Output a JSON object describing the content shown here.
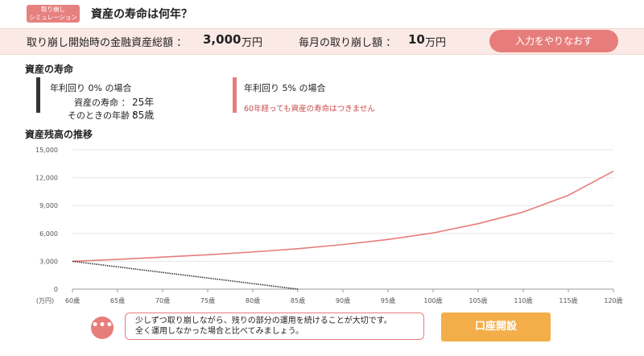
{
  "header": {
    "badge_line1": "取り崩し",
    "badge_line2": "シミュレーション",
    "title": "資産の寿命は何年？"
  },
  "summary": {
    "initial_label": "取り崩し開始時の金融資産総額 ：",
    "initial_value": "3,000",
    "initial_unit": "万円",
    "monthly_label": "毎月の取り崩し額 ：",
    "monthly_value": "10",
    "monthly_unit": "万円",
    "redo_button": "入力をやりなおす"
  },
  "lifespan": {
    "title": "資産の寿命",
    "scenario0": {
      "label": "年利回り 0% の場合",
      "life_label": "資産の寿命 ：",
      "life_value": "25年",
      "age_label": "そのときの年齢 ：",
      "age_value": "85歳"
    },
    "scenario5": {
      "label": "年利回り 5% の場合",
      "note": "60年経っても資産の寿命はつきません"
    }
  },
  "balance": {
    "title": "資産残高の推移"
  },
  "colors": {
    "accent": "#e77d7b",
    "dark": "#333333",
    "orange": "#f3ae49",
    "summary_bg": "#fbe9e5"
  },
  "chart_data": {
    "type": "line",
    "x_unit_label": "(万円)",
    "x": [
      60,
      65,
      70,
      75,
      80,
      85,
      90,
      95,
      100,
      105,
      110,
      115,
      120
    ],
    "x_tick_labels": [
      "60歳",
      "65歳",
      "70歳",
      "75歳",
      "80歳",
      "85歳",
      "90歳",
      "95歳",
      "100歳",
      "105歳",
      "110歳",
      "115歳",
      "120歳"
    ],
    "ylim": [
      0,
      15000
    ],
    "y_ticks": [
      0,
      3000,
      6000,
      9000,
      12000,
      15000
    ],
    "y_tick_labels": [
      "0",
      "3,000",
      "6,000",
      "9,000",
      "12,000",
      "15,000"
    ],
    "grid": true,
    "series": [
      {
        "color": "#e77d7b",
        "style": "solid",
        "values": [
          3000,
          3200,
          3450,
          3700,
          4000,
          4350,
          4800,
          5350,
          6050,
          7050,
          8300,
          10100,
          12700
        ]
      },
      {
        "color": "#333333",
        "style": "dotted",
        "values": [
          3000,
          2400,
          1800,
          1200,
          600,
          0,
          null,
          null,
          null,
          null,
          null,
          null,
          null
        ]
      }
    ]
  },
  "advice": {
    "icon": "chat-bubble-icon",
    "line1": "少しずつ取り崩しながら、残りの部分の運用を続けることが大切です。",
    "line2": "全く運用しなかった場合と比べてみましょう。"
  },
  "account_button": "口座開設"
}
